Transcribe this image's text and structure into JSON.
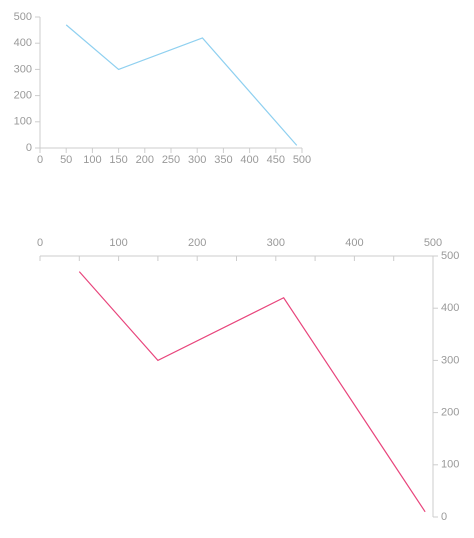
{
  "chart_data": [
    {
      "type": "line",
      "x": [
        50,
        150,
        310,
        490
      ],
      "series": [
        {
          "color": "#8fd0f0",
          "values": [
            470,
            300,
            420,
            10
          ]
        }
      ],
      "xlim": [
        0,
        500
      ],
      "xticks": [
        0,
        50,
        100,
        150,
        200,
        250,
        300,
        350,
        400,
        450,
        500
      ],
      "ylim": [
        0,
        500
      ],
      "yticks": [
        0,
        100,
        200,
        300,
        400,
        500
      ],
      "x_axis_position": "bottom",
      "y_axis_position": "left"
    },
    {
      "type": "line",
      "x": [
        50,
        150,
        310,
        490
      ],
      "series": [
        {
          "color": "#e8457c",
          "values": [
            470,
            300,
            420,
            10
          ]
        }
      ],
      "xlim": [
        0,
        500
      ],
      "xticks": [
        0,
        100,
        200,
        300,
        400,
        500
      ],
      "minor_xticks": [
        50,
        150,
        250,
        350,
        450
      ],
      "ylim": [
        0,
        500
      ],
      "yticks": [
        0,
        100,
        200,
        300,
        400,
        500
      ],
      "x_axis_position": "top",
      "y_axis_position": "right"
    }
  ]
}
